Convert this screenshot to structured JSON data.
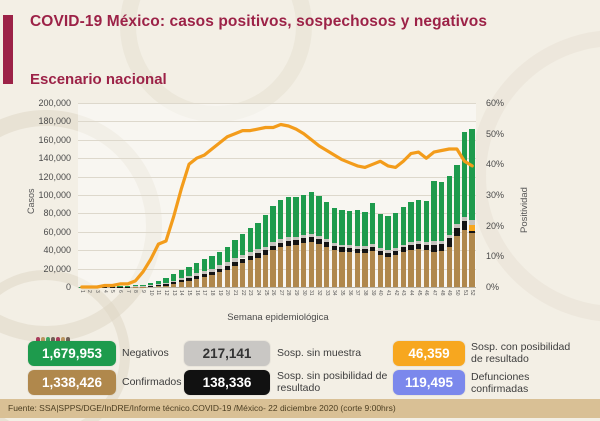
{
  "header": {
    "title": "COVID-19 México: casos positivos, sospechosos y negativos",
    "subtitle": "Escenario nacional"
  },
  "chart_data": {
    "type": "stacked-bar+line",
    "title": "Escenario nacional",
    "xlabel": "Semana epidemiológica",
    "ylabel_left": "Casos",
    "ylabel_right": "Positividad",
    "ylim_left": [
      0,
      200000
    ],
    "ylim_right": [
      0,
      60
    ],
    "grid": true,
    "yticks_left": [
      "200,000",
      "180,000",
      "160,000",
      "140,000",
      "120,000",
      "100,000",
      "80,000",
      "60,000",
      "40,000",
      "20,000",
      "0"
    ],
    "yticks_right": [
      "60%",
      "50%",
      "40%",
      "30%",
      "20%",
      "10%",
      "0%"
    ],
    "x": [
      1,
      2,
      3,
      4,
      5,
      6,
      7,
      8,
      9,
      10,
      11,
      12,
      13,
      14,
      15,
      16,
      17,
      18,
      19,
      20,
      21,
      22,
      23,
      24,
      25,
      26,
      27,
      28,
      29,
      30,
      31,
      32,
      33,
      34,
      35,
      36,
      37,
      38,
      39,
      40,
      41,
      42,
      43,
      44,
      45,
      46,
      47,
      48,
      49,
      50,
      51,
      52
    ],
    "series": [
      {
        "key": "confirmados",
        "name": "Confirmados",
        "color": "#b0884c",
        "values": [
          50,
          50,
          50,
          100,
          100,
          100,
          150,
          200,
          300,
          600,
          1000,
          1600,
          3000,
          5000,
          7000,
          9000,
          11000,
          13000,
          16000,
          19000,
          23000,
          26000,
          29000,
          32000,
          35000,
          40000,
          43000,
          45000,
          46000,
          48000,
          49000,
          47000,
          44000,
          40000,
          38000,
          38000,
          37000,
          37000,
          39000,
          35000,
          33000,
          35000,
          38000,
          40000,
          41000,
          40000,
          38000,
          39000,
          44000,
          55000,
          62000,
          59000
        ]
      },
      {
        "key": "sosp_sin_posibilidad",
        "name": "Sosp. sin posibilidad de resultado",
        "color": "#141414",
        "values": [
          100,
          100,
          150,
          200,
          250,
          300,
          300,
          400,
          500,
          700,
          1000,
          1500,
          2000,
          2500,
          3000,
          3000,
          3500,
          3500,
          4000,
          4000,
          4500,
          5000,
          5000,
          5000,
          5000,
          5000,
          5000,
          5000,
          5000,
          5000,
          5000,
          5000,
          5000,
          5000,
          5000,
          4500,
          4500,
          4500,
          5000,
          4500,
          4000,
          4500,
          5000,
          6000,
          6000,
          6000,
          8000,
          8000,
          9000,
          9000,
          10000,
          1500
        ]
      },
      {
        "key": "sosp_con_posibilidad",
        "name": "Sosp. con posibilidad de resultado",
        "color": "#f7a71f",
        "values": [
          0,
          0,
          0,
          0,
          0,
          0,
          0,
          0,
          0,
          0,
          0,
          0,
          0,
          0,
          0,
          0,
          0,
          0,
          0,
          0,
          0,
          0,
          0,
          0,
          0,
          0,
          0,
          0,
          0,
          0,
          0,
          0,
          0,
          0,
          0,
          0,
          0,
          0,
          0,
          0,
          0,
          0,
          0,
          0,
          0,
          0,
          0,
          0,
          0,
          0,
          0,
          7000
        ]
      },
      {
        "key": "sosp_sin_muestra",
        "name": "Sosp. sin muestra",
        "color": "#c6c3be",
        "values": [
          150,
          200,
          250,
          300,
          350,
          400,
          450,
          600,
          700,
          900,
          1200,
          1500,
          2000,
          2500,
          2500,
          3000,
          3000,
          3500,
          3500,
          4000,
          4000,
          4000,
          4000,
          4000,
          4000,
          4000,
          4000,
          4000,
          3500,
          3500,
          3500,
          3500,
          3000,
          3000,
          3000,
          3000,
          3000,
          3000,
          3000,
          3000,
          3000,
          3000,
          3000,
          3000,
          3000,
          3000,
          3500,
          3500,
          4000,
          4000,
          4500,
          5000
        ]
      },
      {
        "key": "negativos",
        "name": "Negativos",
        "color": "#1e9b4d",
        "values": [
          100,
          150,
          150,
          200,
          300,
          400,
          500,
          600,
          1000,
          1800,
          3300,
          4900,
          7000,
          8000,
          9500,
          11000,
          12500,
          14000,
          14500,
          17000,
          19500,
          23000,
          26000,
          29000,
          34000,
          39000,
          43000,
          44000,
          43500,
          43500,
          45500,
          43500,
          40000,
          38000,
          38000,
          37500,
          39500,
          37500,
          44000,
          36500,
          37000,
          38500,
          41000,
          43000,
          45000,
          44000,
          65500,
          63500,
          64000,
          65000,
          91500,
          99500
        ]
      }
    ],
    "line": {
      "name": "Positividad",
      "color": "#f39c1b",
      "values": [
        0,
        0,
        0,
        0.5,
        0.5,
        1,
        1,
        2,
        5,
        9,
        14,
        15,
        23,
        32,
        40,
        42,
        43,
        45,
        47,
        49,
        50,
        51,
        51,
        51.5,
        52,
        52,
        53,
        52.5,
        51.5,
        50,
        48,
        46,
        44.5,
        43,
        41.5,
        40.5,
        39.5,
        39,
        40,
        41,
        39.5,
        39,
        41,
        43.5,
        44,
        42,
        44,
        44.5,
        45,
        45,
        41,
        39.5
      ]
    }
  },
  "stats": {
    "boxes": [
      {
        "value": "1,679,953",
        "label": "Negativos",
        "color": "#1e9b4d",
        "text_color": "#ffffff"
      },
      {
        "value": "217,141",
        "label": "Sosp. sin muestra",
        "color": "#c9c7c4",
        "text_color": "#333333"
      },
      {
        "value": "46,359",
        "label": "Sosp. con posibilidad de resultado",
        "color": "#f7a71f",
        "text_color": "#ffffff"
      },
      {
        "value": "1,338,426",
        "label": "Confirmados",
        "color": "#b0884c",
        "text_color": "#ffffff"
      },
      {
        "value": "138,336",
        "label": "Sosp. sin posibilidad de resultado",
        "color": "#111111",
        "text_color": "#ffffff"
      },
      {
        "value": "119,495",
        "label": "Defunciones confirmadas",
        "color": "#7b88ec",
        "text_color": "#ffffff"
      }
    ]
  },
  "footer": {
    "source": "Fuente: SSA|SPPS/DGE/InDRE/Informe técnico.COVID-19 /México- 22 diciembre 2020 (corte 9:00hrs)"
  }
}
